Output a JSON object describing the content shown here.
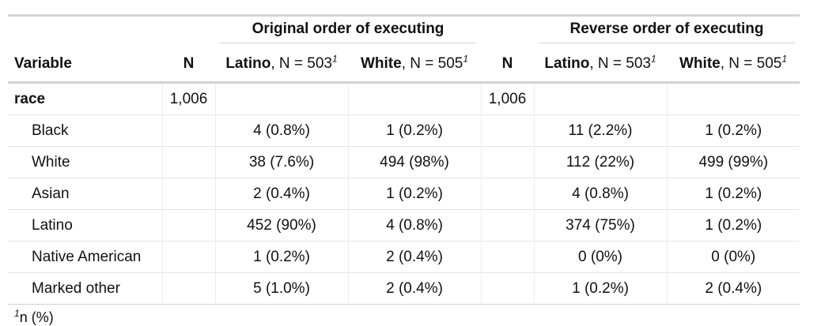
{
  "table": {
    "spanners": [
      {
        "label": "Original order of executing"
      },
      {
        "label": "Reverse order of executing"
      }
    ],
    "columns": {
      "variable": "Variable",
      "n": "N",
      "latino_name": "Latino",
      "latino_count": ", N = 503",
      "white_name": "White",
      "white_count": ", N = 505",
      "footnote_mark": "1"
    },
    "rows": [
      {
        "label": "race",
        "n1": "1,006",
        "lat1": "",
        "wht1": "",
        "n2": "1,006",
        "lat2": "",
        "wht2": ""
      },
      {
        "label": "Black",
        "n1": "",
        "lat1": "4 (0.8%)",
        "wht1": "1 (0.2%)",
        "n2": "",
        "lat2": "11 (2.2%)",
        "wht2": "1 (0.2%)"
      },
      {
        "label": "White",
        "n1": "",
        "lat1": "38 (7.6%)",
        "wht1": "494 (98%)",
        "n2": "",
        "lat2": "112 (22%)",
        "wht2": "499 (99%)"
      },
      {
        "label": "Asian",
        "n1": "",
        "lat1": "2 (0.4%)",
        "wht1": "1 (0.2%)",
        "n2": "",
        "lat2": "4 (0.8%)",
        "wht2": "1 (0.2%)"
      },
      {
        "label": "Latino",
        "n1": "",
        "lat1": "452 (90%)",
        "wht1": "4 (0.8%)",
        "n2": "",
        "lat2": "374 (75%)",
        "wht2": "1 (0.2%)"
      },
      {
        "label": "Native American",
        "n1": "",
        "lat1": "1 (0.2%)",
        "wht1": "2 (0.4%)",
        "n2": "",
        "lat2": "0 (0%)",
        "wht2": "0 (0%)"
      },
      {
        "label": "Marked other",
        "n1": "",
        "lat1": "5 (1.0%)",
        "wht1": "2 (0.4%)",
        "n2": "",
        "lat2": "1 (0.2%)",
        "wht2": "2 (0.4%)"
      }
    ]
  },
  "footnote": {
    "mark": "1",
    "text": "n (%)"
  }
}
